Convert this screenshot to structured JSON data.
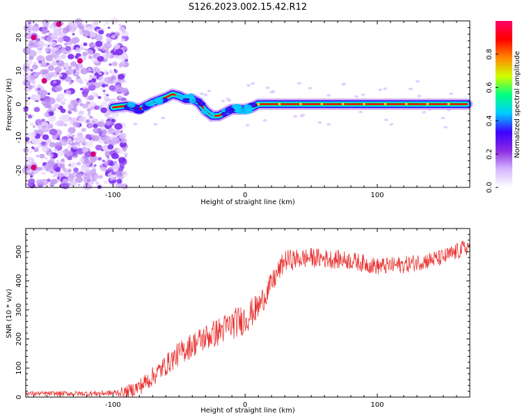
{
  "title": "S126.2023.002.15.42.R12",
  "chart_data": [
    {
      "type": "heatmap",
      "xlabel": "Height of straight line (km)",
      "ylabel": "Frequency (Hz)",
      "xlim": [
        -166,
        170
      ],
      "ylim": [
        -25,
        25
      ],
      "x_ticks": [
        -100,
        0,
        100
      ],
      "y_ticks": [
        -20,
        -10,
        0,
        10,
        20
      ],
      "ridge": {
        "x": [
          -100,
          -90,
          -80,
          -70,
          -60,
          -55,
          -50,
          -45,
          -40,
          -35,
          -30,
          -25,
          -20,
          -15,
          -10,
          -5,
          0,
          5,
          10,
          20,
          40,
          60,
          80,
          100,
          120,
          140,
          160,
          168
        ],
        "y": [
          -1,
          -0.5,
          -1.5,
          0.5,
          2,
          3,
          2.5,
          1.5,
          1.5,
          0.5,
          -2,
          -3.5,
          -3.5,
          -2.5,
          -1.5,
          -1.5,
          -1.5,
          -1,
          0,
          0,
          0,
          0,
          0,
          0,
          0,
          0,
          0,
          0
        ]
      },
      "colorbar": {
        "label": "Normalized spectral amplitude",
        "range": [
          0,
          1
        ],
        "ticks": [
          "0.0",
          "0.2",
          "0.4",
          "0.6",
          "0.8"
        ],
        "colors": [
          "#ffffff",
          "#d4b4ff",
          "#8a2be2",
          "#3c00ff",
          "#00ccff",
          "#00ff80",
          "#cfff00",
          "#ff8800",
          "#ff0000",
          "#ff0066"
        ]
      }
    },
    {
      "type": "line",
      "xlabel": "Height of straight line (km)",
      "ylabel": "SNR (10 * v/v)",
      "xlim": [
        -166,
        170
      ],
      "ylim": [
        0,
        580
      ],
      "x_ticks": [
        -100,
        0,
        100
      ],
      "y_ticks": [
        0,
        100,
        200,
        300,
        400,
        500
      ],
      "color": "#e8302f",
      "series": [
        {
          "trend": {
            "x": [
              -166,
              -120,
              -100,
              -90,
              -80,
              -70,
              -60,
              -50,
              -40,
              -30,
              -20,
              -10,
              0,
              10,
              20,
              30,
              50,
              80,
              100,
              120,
              150,
              170
            ],
            "y": [
              12,
              12,
              14,
              18,
              35,
              70,
              110,
              150,
              180,
              205,
              225,
              250,
              270,
              310,
              390,
              470,
              480,
              470,
              450,
              455,
              480,
              520
            ]
          },
          "noise": {
            "x": [
              -166,
              -100,
              -80,
              -40,
              0,
              20,
              40,
              100,
              170
            ],
            "amplitude": [
              8,
              10,
              30,
              45,
              55,
              40,
              35,
              30,
              30
            ]
          }
        }
      ]
    }
  ]
}
